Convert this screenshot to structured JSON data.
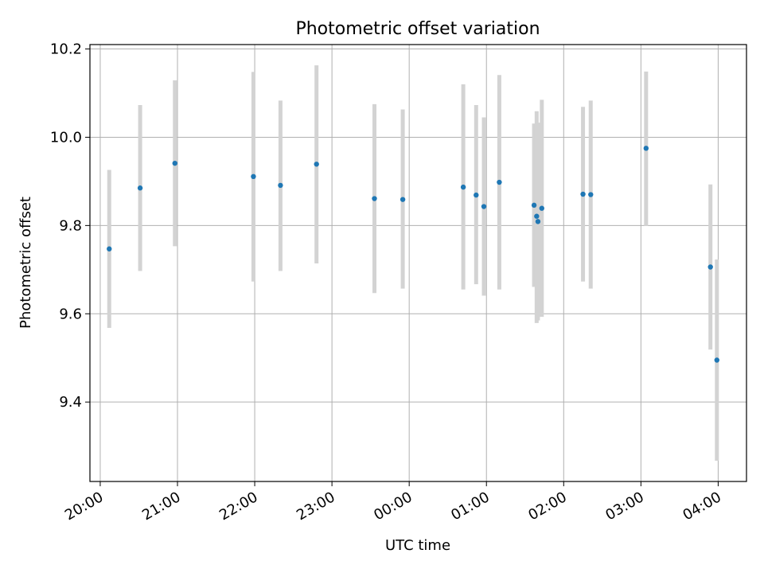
{
  "chart_data": {
    "type": "scatter",
    "title": "Photometric offset variation",
    "xlabel": "UTC time",
    "ylabel": "Photometric offset",
    "x_range": [
      "19:52",
      "04:22"
    ],
    "ylim": [
      9.22,
      10.21
    ],
    "x_ticks": [
      "20:00",
      "21:00",
      "22:00",
      "23:00",
      "00:00",
      "01:00",
      "02:00",
      "03:00",
      "04:00"
    ],
    "y_ticks": [
      9.4,
      9.6,
      9.8,
      10.0,
      10.2
    ],
    "y_tick_labels": [
      "9.4",
      "9.6",
      "9.8",
      "10.0",
      "10.2"
    ],
    "grid": true,
    "point_color": "#1f77b4",
    "errorbar_color": "#d3d3d3",
    "points": [
      {
        "time": "20:07",
        "y": 9.747,
        "low": 9.568,
        "high": 9.926
      },
      {
        "time": "20:31",
        "y": 9.885,
        "low": 9.697,
        "high": 10.073
      },
      {
        "time": "20:58",
        "y": 9.941,
        "low": 9.753,
        "high": 10.129
      },
      {
        "time": "21:59",
        "y": 9.911,
        "low": 9.673,
        "high": 10.148
      },
      {
        "time": "22:20",
        "y": 9.891,
        "low": 9.697,
        "high": 10.083
      },
      {
        "time": "22:48",
        "y": 9.939,
        "low": 9.714,
        "high": 10.163
      },
      {
        "time": "23:33",
        "y": 9.861,
        "low": 9.647,
        "high": 10.075
      },
      {
        "time": "23:55",
        "y": 9.859,
        "low": 9.657,
        "high": 10.063
      },
      {
        "time": "00:42",
        "y": 9.887,
        "low": 9.655,
        "high": 10.12
      },
      {
        "time": "00:52",
        "y": 9.869,
        "low": 9.667,
        "high": 10.073
      },
      {
        "time": "00:58",
        "y": 9.843,
        "low": 9.641,
        "high": 10.045
      },
      {
        "time": "01:10",
        "y": 9.898,
        "low": 9.655,
        "high": 10.141
      },
      {
        "time": "01:37",
        "y": 9.846,
        "low": 9.661,
        "high": 10.031
      },
      {
        "time": "01:39",
        "y": 9.821,
        "low": 9.579,
        "high": 10.059
      },
      {
        "time": "01:40",
        "y": 9.809,
        "low": 9.585,
        "high": 10.033
      },
      {
        "time": "01:43",
        "y": 9.839,
        "low": 9.593,
        "high": 10.085
      },
      {
        "time": "02:15",
        "y": 9.871,
        "low": 9.673,
        "high": 10.069
      },
      {
        "time": "02:21",
        "y": 9.87,
        "low": 9.657,
        "high": 10.083
      },
      {
        "time": "03:04",
        "y": 9.975,
        "low": 9.799,
        "high": 10.149
      },
      {
        "time": "03:54",
        "y": 9.706,
        "low": 9.519,
        "high": 9.893
      },
      {
        "time": "03:59",
        "y": 9.495,
        "low": 9.267,
        "high": 9.723
      }
    ]
  }
}
